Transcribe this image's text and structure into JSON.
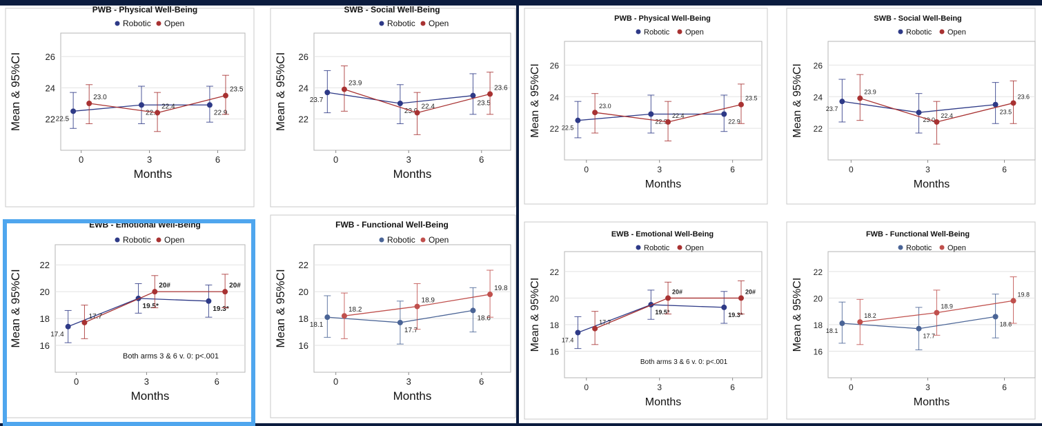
{
  "chart_data": [
    {
      "type": "line",
      "title": "PWB - Physical Well-Being",
      "xlabel": "Months",
      "ylabel": "Mean & 95%CI",
      "x": [
        0,
        3,
        6
      ],
      "ylim": [
        20,
        27.5
      ],
      "yticks": [
        22,
        24,
        26
      ],
      "legend": [
        "Robotic",
        "Open"
      ],
      "legend_position": "top-center",
      "annotation": "",
      "series": [
        {
          "name": "Robotic",
          "color": "#2e3a87",
          "values": [
            22.5,
            22.9,
            22.9
          ],
          "ci_low": [
            21.4,
            21.7,
            21.8
          ],
          "ci_high": [
            23.7,
            24.1,
            24.1
          ],
          "labels": [
            "22.5",
            "22.9",
            "22.9"
          ]
        },
        {
          "name": "Open",
          "color": "#a83232",
          "values": [
            23.0,
            22.4,
            23.5
          ],
          "ci_low": [
            21.7,
            21.2,
            22.3
          ],
          "ci_high": [
            24.2,
            23.7,
            24.8
          ],
          "labels": [
            "23.0",
            "22.4",
            "23.5"
          ]
        }
      ]
    },
    {
      "type": "line",
      "title": "SWB - Social Well-Being",
      "xlabel": "Months",
      "ylabel": "Mean & 95%CI",
      "x": [
        0,
        3,
        6
      ],
      "ylim": [
        20,
        27.5
      ],
      "yticks": [
        22,
        24,
        26
      ],
      "legend": [
        "Robotic",
        "Open"
      ],
      "legend_position": "top-center",
      "annotation": "",
      "series": [
        {
          "name": "Robotic",
          "color": "#2e3a87",
          "values": [
            23.7,
            23.0,
            23.5
          ],
          "ci_low": [
            22.4,
            21.7,
            22.3
          ],
          "ci_high": [
            25.1,
            24.2,
            24.9
          ],
          "labels": [
            "23.7",
            "23.0",
            "23.5"
          ]
        },
        {
          "name": "Open",
          "color": "#a83232",
          "values": [
            23.9,
            22.4,
            23.6
          ],
          "ci_low": [
            22.5,
            21.0,
            22.3
          ],
          "ci_high": [
            25.4,
            23.7,
            25.0
          ],
          "labels": [
            "23.9",
            "22.4",
            "23.6"
          ]
        }
      ]
    },
    {
      "type": "line",
      "title": "EWB - Emotional Well-Being",
      "xlabel": "Months",
      "ylabel": "Mean & 95%CI",
      "x": [
        0,
        3,
        6
      ],
      "ylim": [
        14,
        23.5
      ],
      "yticks": [
        16,
        18,
        20,
        22
      ],
      "legend": [
        "Robotic",
        "Open"
      ],
      "legend_position": "top-center",
      "annotation": "Both arms 3 & 6 v. 0: p<.001",
      "series": [
        {
          "name": "Robotic",
          "color": "#2e3a87",
          "values": [
            17.4,
            19.5,
            19.3
          ],
          "ci_low": [
            16.2,
            18.4,
            18.1
          ],
          "ci_high": [
            18.6,
            20.6,
            20.5
          ],
          "labels": [
            "17.4",
            "19.5*",
            "19.3*"
          ]
        },
        {
          "name": "Open",
          "color": "#a83232",
          "values": [
            17.7,
            20.0,
            20.0
          ],
          "ci_low": [
            16.5,
            18.8,
            18.8
          ],
          "ci_high": [
            19.0,
            21.2,
            21.3
          ],
          "labels": [
            "17.7",
            "20#",
            "20#"
          ]
        }
      ]
    },
    {
      "type": "line",
      "title": "FWB - Functional Well-Being",
      "xlabel": "Months",
      "ylabel": "Mean & 95%CI",
      "x": [
        0,
        3,
        6
      ],
      "ylim": [
        14,
        23.5
      ],
      "yticks": [
        16,
        18,
        20,
        22
      ],
      "legend": [
        "Robotic",
        "Open"
      ],
      "legend_position": "top-center",
      "annotation": "",
      "series": [
        {
          "name": "Robotic",
          "color": "#4a6496",
          "values": [
            18.1,
            17.7,
            18.6
          ],
          "ci_low": [
            16.6,
            16.1,
            17.0
          ],
          "ci_high": [
            19.7,
            19.3,
            20.3
          ],
          "labels": [
            "18.1",
            "17.7",
            "18.6"
          ]
        },
        {
          "name": "Open",
          "color": "#c0504d",
          "values": [
            18.2,
            18.9,
            19.8
          ],
          "ci_low": [
            16.5,
            17.2,
            18.1
          ],
          "ci_high": [
            19.9,
            20.6,
            21.6
          ],
          "labels": [
            "18.2",
            "18.9",
            "19.8"
          ]
        }
      ]
    }
  ]
}
